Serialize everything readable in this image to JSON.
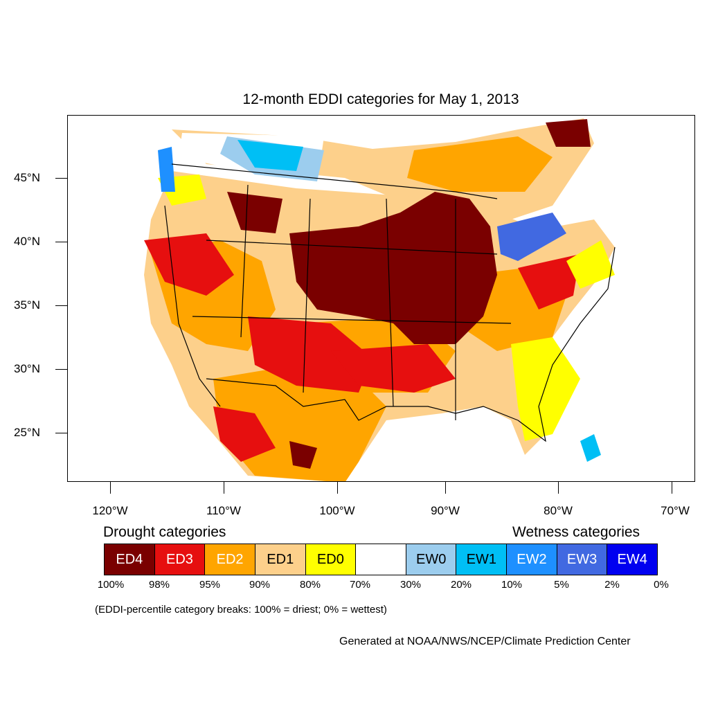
{
  "title": "12-month EDDI categories for May 1, 2013",
  "lat_labels": [
    "45°N",
    "40°N",
    "35°N",
    "30°N",
    "25°N"
  ],
  "lon_labels": [
    "120°W",
    "110°W",
    "100°W",
    "90°W",
    "80°W",
    "70°W"
  ],
  "legend": {
    "drought_title": "Drought categories",
    "wetness_title": "Wetness categories",
    "categories": [
      {
        "label": "ED4",
        "color": "#7a0000",
        "text_color": "#ffffff"
      },
      {
        "label": "ED3",
        "color": "#e60f0f",
        "text_color": "#ffffff"
      },
      {
        "label": "ED2",
        "color": "#ffa500",
        "text_color": "#ffffff"
      },
      {
        "label": "ED1",
        "color": "#fdd08b",
        "text_color": "#000000"
      },
      {
        "label": "ED0",
        "color": "#ffff00",
        "text_color": "#000000"
      },
      {
        "label": "",
        "color": "#ffffff",
        "text_color": "#000000"
      },
      {
        "label": "EW0",
        "color": "#9ccdee",
        "text_color": "#000000"
      },
      {
        "label": "EW1",
        "color": "#00bff5",
        "text_color": "#000000"
      },
      {
        "label": "EW2",
        "color": "#1e90ff",
        "text_color": "#ffffff"
      },
      {
        "label": "EW3",
        "color": "#4169e1",
        "text_color": "#ffffff"
      },
      {
        "label": "EW4",
        "color": "#0000f0",
        "text_color": "#ffffff"
      }
    ],
    "breaks": [
      "100%",
      "98%",
      "95%",
      "90%",
      "80%",
      "70%",
      "30%",
      "20%",
      "10%",
      "5%",
      "2%",
      "0%"
    ]
  },
  "note": "(EDDI-percentile category breaks: 100% = driest; 0% = wettest)",
  "credit": "Generated at NOAA/NWS/NCEP/Climate Prediction Center"
}
